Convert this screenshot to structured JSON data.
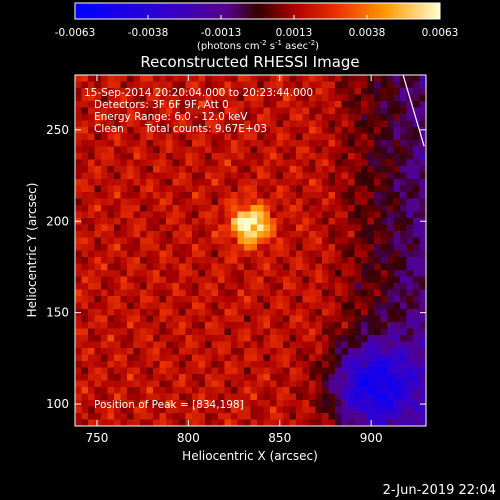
{
  "chart_data": {
    "type": "heatmap",
    "title": "Reconstructed RHESSI Image",
    "xlabel": "Heliocentric X (arcsec)",
    "ylabel": "Heliocentric Y (arcsec)",
    "xlim": [
      738,
      930
    ],
    "ylim": [
      88,
      280
    ],
    "x_ticks": [
      750,
      800,
      850,
      900
    ],
    "y_ticks": [
      100,
      150,
      200,
      250
    ],
    "colorbar": {
      "range": [
        -0.0063,
        0.0063
      ],
      "ticks": [
        "-0.0063",
        "-0.0038",
        "-0.0013",
        "0.0013",
        "0.0038",
        "0.0063"
      ],
      "units_prefix": "(photons cm",
      "units_sup1": "-2",
      "units_mid": " s",
      "units_sup2": "-1",
      "units_mid2": " asec",
      "units_sup3": "-2",
      "units_suffix": ")"
    },
    "annotations": {
      "time_range": "15-Sep-2014 20:20:04.000 to 20:23:44.000",
      "detectors": "Detectors: 3F 6F 9F, Att 0",
      "energy": "Energy Range: 6.0 - 12.0 keV",
      "method": "Clean",
      "counts": "Total counts: 9.67E+03",
      "peak": "Position of Peak = [834,198]"
    },
    "peak": {
      "x": 834,
      "y": 198
    },
    "limb_points": [
      [
        916,
        285
      ],
      [
        929,
        241
      ]
    ],
    "grid": false,
    "footer_date": "2-Jun-2019 22:04"
  }
}
